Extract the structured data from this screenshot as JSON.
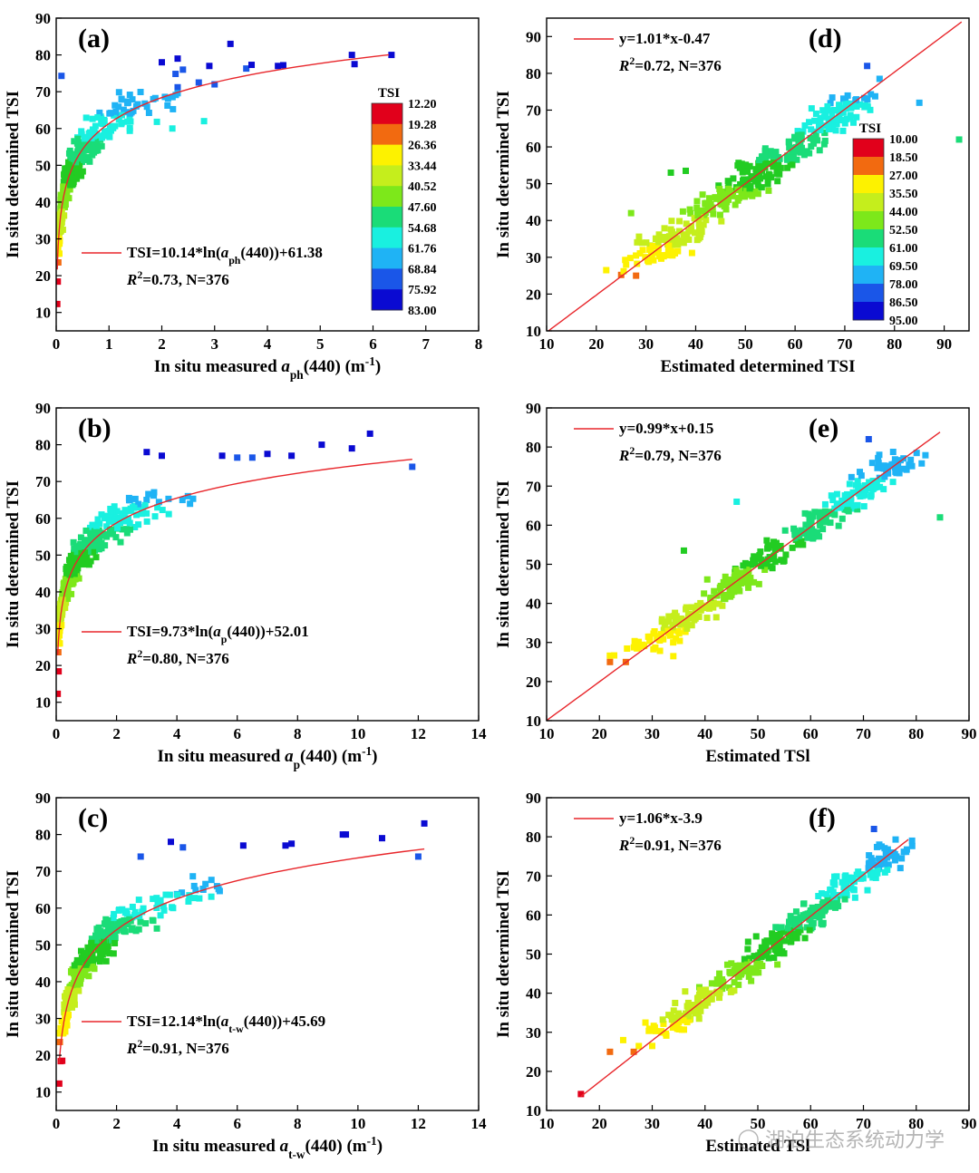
{
  "chart_data": [
    {
      "id": "a",
      "type": "scatter",
      "panel_label": "(a)",
      "xlabel_parts": [
        {
          "t": "In situ measured "
        },
        {
          "t": "a",
          "i": true
        },
        {
          "t": "ph",
          "sub": true
        },
        {
          "t": "(440) (m"
        },
        {
          "t": "-1",
          "sup": true
        },
        {
          "t": ")"
        }
      ],
      "ylabel": "In situ determined TSI",
      "xlim": [
        0,
        8
      ],
      "ylim": [
        5,
        90
      ],
      "xticks": [
        0,
        1,
        2,
        3,
        4,
        5,
        6,
        7,
        8
      ],
      "yticks": [
        10,
        20,
        30,
        40,
        50,
        60,
        70,
        80,
        90
      ],
      "fit": {
        "kind": "log",
        "a": 10.14,
        "b": 61.38,
        "x_range": [
          0.02,
          6.3
        ],
        "color": "#e8262b"
      },
      "equation": "TSI=10.14*ln(a_ph(440))+61.38",
      "equation_parts": [
        {
          "t": "TSI=10.14*ln("
        },
        {
          "t": "a",
          "i": true
        },
        {
          "t": "ph",
          "sub": true
        },
        {
          "t": "(440))+61.38"
        }
      ],
      "stats_parts": [
        {
          "t": "R",
          "i": true
        },
        {
          "t": "2",
          "sup": true
        },
        {
          "t": "=0.73, N=376"
        }
      ],
      "N": 376,
      "R2": 0.73,
      "outliers": [
        [
          0.02,
          12.3
        ],
        [
          0.03,
          18.4
        ],
        [
          0.04,
          23.6
        ],
        [
          0.06,
          26.0
        ],
        [
          0.1,
          74.3
        ],
        [
          2.3,
          79.0
        ],
        [
          3.3,
          83.0
        ],
        [
          2.9,
          77.0
        ],
        [
          3.6,
          76.3
        ],
        [
          3.7,
          77.3
        ],
        [
          4.2,
          77.0
        ],
        [
          4.3,
          77.2
        ],
        [
          5.6,
          80.0
        ],
        [
          5.65,
          77.5
        ],
        [
          6.35,
          80.0
        ],
        [
          2.0,
          78.0
        ],
        [
          2.4,
          76.0
        ],
        [
          3.0,
          72.0
        ],
        [
          2.8,
          62.0
        ],
        [
          2.2,
          60.0
        ],
        [
          2.7,
          72.5
        ]
      ],
      "noise": 5.2,
      "x_scale": 0.55,
      "x_max": 2.3
    },
    {
      "id": "b",
      "type": "scatter",
      "panel_label": "(b)",
      "xlabel_parts": [
        {
          "t": "In situ measured "
        },
        {
          "t": "a",
          "i": true
        },
        {
          "t": "p",
          "sub": true
        },
        {
          "t": "(440) (m"
        },
        {
          "t": "-1",
          "sup": true
        },
        {
          "t": ")"
        }
      ],
      "ylabel": "In situ determined TSI",
      "xlim": [
        0,
        14
      ],
      "ylim": [
        5,
        90
      ],
      "xticks": [
        0,
        2,
        4,
        6,
        8,
        10,
        12,
        14
      ],
      "yticks": [
        10,
        20,
        30,
        40,
        50,
        60,
        70,
        80,
        90
      ],
      "fit": {
        "kind": "log",
        "a": 9.73,
        "b": 52.01,
        "x_range": [
          0.05,
          11.8
        ],
        "color": "#e8262b"
      },
      "equation": "TSI=9.73*ln(a_p(440))+52.01",
      "equation_parts": [
        {
          "t": "TSI=9.73*ln("
        },
        {
          "t": "a",
          "i": true
        },
        {
          "t": "p",
          "sub": true
        },
        {
          "t": "(440))+52.01"
        }
      ],
      "stats_parts": [
        {
          "t": "R",
          "i": true
        },
        {
          "t": "2",
          "sup": true
        },
        {
          "t": "=0.80, N=376"
        }
      ],
      "N": 376,
      "R2": 0.8,
      "outliers": [
        [
          0.05,
          12.3
        ],
        [
          0.08,
          18.4
        ],
        [
          0.07,
          23.6
        ],
        [
          0.12,
          26.0
        ],
        [
          3.0,
          78.0
        ],
        [
          3.5,
          77.0
        ],
        [
          5.5,
          77.0
        ],
        [
          6.0,
          76.5
        ],
        [
          6.5,
          76.5
        ],
        [
          7.0,
          77.5
        ],
        [
          7.8,
          77.0
        ],
        [
          8.8,
          80.0
        ],
        [
          9.8,
          79.0
        ],
        [
          10.4,
          83.0
        ],
        [
          11.8,
          74.0
        ]
      ],
      "noise": 4.6,
      "x_scale": 1.1,
      "x_max": 9.5
    },
    {
      "id": "c",
      "type": "scatter",
      "panel_label": "(c)",
      "xlabel_parts": [
        {
          "t": "In situ measured "
        },
        {
          "t": "a",
          "i": true
        },
        {
          "t": "t-w",
          "sub": true
        },
        {
          "t": "(440) (m"
        },
        {
          "t": "-1",
          "sup": true
        },
        {
          "t": ")"
        }
      ],
      "ylabel": "In situ determined TSI",
      "xlim": [
        0,
        14
      ],
      "ylim": [
        5,
        90
      ],
      "xticks": [
        0,
        2,
        4,
        6,
        8,
        10,
        12,
        14
      ],
      "yticks": [
        10,
        20,
        30,
        40,
        50,
        60,
        70,
        80,
        90
      ],
      "fit": {
        "kind": "log",
        "a": 12.14,
        "b": 45.69,
        "x_range": [
          0.1,
          12.2
        ],
        "color": "#e8262b"
      },
      "equation": "TSI=12.14*ln(a_t-w(440))+45.69",
      "equation_parts": [
        {
          "t": "TSI=12.14*ln("
        },
        {
          "t": "a",
          "i": true
        },
        {
          "t": "t-w",
          "sub": true
        },
        {
          "t": "(440))+45.69"
        }
      ],
      "stats_parts": [
        {
          "t": "R",
          "i": true
        },
        {
          "t": "2",
          "sup": true
        },
        {
          "t": "=0.91, N=376"
        }
      ],
      "N": 376,
      "R2": 0.91,
      "outliers": [
        [
          0.1,
          12.3
        ],
        [
          0.15,
          18.4
        ],
        [
          0.2,
          18.5
        ],
        [
          0.12,
          23.6
        ],
        [
          3.8,
          78.0
        ],
        [
          4.2,
          76.5
        ],
        [
          6.2,
          77.0
        ],
        [
          7.6,
          77.0
        ],
        [
          7.8,
          77.5
        ],
        [
          9.5,
          80.0
        ],
        [
          9.6,
          80.0
        ],
        [
          10.8,
          79.0
        ],
        [
          12.2,
          83.0
        ],
        [
          12.0,
          74.0
        ],
        [
          2.8,
          74.0
        ]
      ],
      "noise": 4.3,
      "x_scale": 1.4,
      "x_max": 10.0
    },
    {
      "id": "d",
      "type": "scatter",
      "panel_label": "(d)",
      "xlabel_parts": [
        {
          "t": "Estimated determined TSI"
        }
      ],
      "ylabel": "In situ determined TSI",
      "xlim": [
        10,
        95
      ],
      "ylim": [
        10,
        95
      ],
      "xticks": [
        10,
        20,
        30,
        40,
        50,
        60,
        70,
        80,
        90
      ],
      "yticks": [
        10,
        20,
        30,
        40,
        50,
        60,
        70,
        80,
        90
      ],
      "fit": {
        "kind": "linear",
        "a": 1.01,
        "b": -0.47,
        "x_range": [
          10,
          93.5
        ],
        "color": "#e8262b"
      },
      "equation": "y=1.01*x-0.47",
      "equation_parts": [
        {
          "t": "y=1.01*x-0.47"
        }
      ],
      "stats_parts": [
        {
          "t": "R",
          "i": true
        },
        {
          "t": "2",
          "sup": true
        },
        {
          "t": "=0.72, N=376"
        }
      ],
      "N": 376,
      "R2": 0.72,
      "outliers": [
        [
          22.0,
          26.5
        ],
        [
          25.0,
          25.2
        ],
        [
          25.5,
          26.2
        ],
        [
          28.0,
          25.0
        ],
        [
          26.0,
          28.0
        ],
        [
          27.0,
          42.0
        ],
        [
          74.5,
          82.0
        ],
        [
          77.0,
          78.5
        ],
        [
          85.0,
          72.0
        ],
        [
          93.0,
          62.0
        ],
        [
          35.0,
          53.0
        ],
        [
          38.0,
          53.5
        ]
      ],
      "noise": 4.8,
      "t_range": [
        29,
        73
      ]
    },
    {
      "id": "e",
      "type": "scatter",
      "panel_label": "(e)",
      "xlabel_parts": [
        {
          "t": "Estimated TSl"
        }
      ],
      "ylabel": "In situ determined TSI",
      "xlim": [
        10,
        90
      ],
      "ylim": [
        10,
        90
      ],
      "xticks": [
        10,
        20,
        30,
        40,
        50,
        60,
        70,
        80,
        90
      ],
      "yticks": [
        10,
        20,
        30,
        40,
        50,
        60,
        70,
        80,
        90
      ],
      "fit": {
        "kind": "linear",
        "a": 0.99,
        "b": 0.15,
        "x_range": [
          10,
          84.5
        ],
        "color": "#e8262b"
      },
      "equation": "y=0.99*x+0.15",
      "equation_parts": [
        {
          "t": "y=0.99*x+0.15"
        }
      ],
      "stats_parts": [
        {
          "t": "R",
          "i": true
        },
        {
          "t": "2",
          "sup": true
        },
        {
          "t": "=0.79, N=376"
        }
      ],
      "N": 376,
      "R2": 0.79,
      "outliers": [
        [
          22.0,
          25.0
        ],
        [
          25.0,
          25.0
        ],
        [
          34.0,
          26.5
        ],
        [
          71.0,
          82.0
        ],
        [
          73.0,
          78.0
        ],
        [
          84.5,
          62.0
        ],
        [
          36.0,
          53.5
        ],
        [
          46.0,
          66.0
        ]
      ],
      "noise": 3.9,
      "t_range": [
        29,
        77
      ]
    },
    {
      "id": "f",
      "type": "scatter",
      "panel_label": "(f)",
      "xlabel_parts": [
        {
          "t": "Estimated TSl"
        }
      ],
      "ylabel": "In situ determined TSI",
      "xlim": [
        10,
        90
      ],
      "ylim": [
        10,
        90
      ],
      "xticks": [
        10,
        20,
        30,
        40,
        50,
        60,
        70,
        80,
        90
      ],
      "yticks": [
        10,
        20,
        30,
        40,
        50,
        60,
        70,
        80,
        90
      ],
      "fit": {
        "kind": "linear",
        "a": 1.06,
        "b": -3.9,
        "x_range": [
          16.5,
          78.5
        ],
        "color": "#e8262b"
      },
      "equation": "y=1.06*x-3.9",
      "equation_parts": [
        {
          "t": "y=1.06*x-3.9"
        }
      ],
      "stats_parts": [
        {
          "t": "R",
          "i": true
        },
        {
          "t": "2",
          "sup": true
        },
        {
          "t": "=0.91, N=376"
        }
      ],
      "N": 376,
      "R2": 0.91,
      "outliers": [
        [
          16.5,
          14.2
        ],
        [
          22.0,
          25.0
        ],
        [
          24.5,
          28.0
        ],
        [
          26.5,
          25.0
        ],
        [
          30.0,
          26.5
        ],
        [
          72.0,
          82.0
        ],
        [
          73.0,
          78.0
        ],
        [
          76.0,
          74.0
        ],
        [
          77.0,
          72.0
        ]
      ],
      "noise": 3.6,
      "t_range": [
        29,
        77
      ]
    }
  ],
  "colorbars": [
    {
      "panel": "a",
      "title": "TSI",
      "labels": [
        "12.20",
        "19.28",
        "26.36",
        "33.44",
        "40.52",
        "47.60",
        "54.68",
        "61.76",
        "68.84",
        "75.92",
        "83.00"
      ]
    },
    {
      "panel": "d",
      "title": "TSI",
      "labels": [
        "10.00",
        "18.50",
        "27.00",
        "35.50",
        "44.00",
        "52.50",
        "61.00",
        "69.50",
        "78.00",
        "86.50",
        "95.00"
      ]
    }
  ],
  "colors": {
    "fit_line": "#e8262b",
    "tsi_scale": [
      "#e1001b",
      "#f26a10",
      "#fdf200",
      "#c5ee1c",
      "#7de81a",
      "#22cc22",
      "#1adc78",
      "#19f0e0",
      "#1fb3f5",
      "#1a56e8",
      "#0a0ad2"
    ]
  },
  "watermark": {
    "icon": "wechat-icon",
    "text": "湖泊生态系统动力学"
  }
}
